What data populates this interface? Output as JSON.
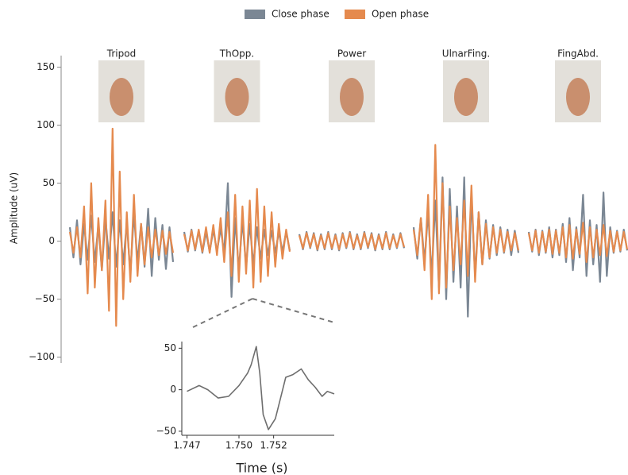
{
  "chart_data": [
    {
      "type": "line",
      "ylabel": "Amplitude (uV)",
      "categories": [
        "Tripod",
        "ThOpp.",
        "Power",
        "UlnarFing.",
        "FingAbd."
      ],
      "legend": "top",
      "ylim": [
        -105,
        160
      ],
      "yticks": [
        {
          "value": -100,
          "label": "−100"
        },
        {
          "value": -50,
          "label": "−50"
        },
        0,
        50,
        100,
        150
      ],
      "series": [
        {
          "name": "Close phase",
          "color": "#7b8794",
          "values": [
            [
              12,
              -14,
              18,
              -20,
              15,
              -16,
              22,
              -18,
              14,
              -25,
              20,
              -15,
              25,
              -22,
              18,
              -20,
              16,
              -28,
              24,
              -18,
              15,
              -22,
              28,
              -30,
              20,
              -16,
              14,
              -24,
              12,
              -18
            ],
            [
              8,
              -9,
              10,
              -8,
              9,
              -10,
              8,
              -9,
              10,
              -9,
              11,
              -10,
              50,
              -48,
              20,
              -25,
              18,
              -22,
              15,
              -20,
              12,
              -15,
              10,
              -12,
              9,
              -10,
              8,
              -9,
              8,
              -8
            ],
            [
              6,
              -7,
              8,
              -6,
              7,
              -8,
              6,
              -7,
              8,
              -7,
              6,
              -8,
              7,
              -6,
              8,
              -7,
              6,
              -7,
              8,
              -6,
              7,
              -8,
              6,
              -7,
              8,
              -7,
              6,
              -6,
              7,
              -6
            ],
            [
              12,
              -15,
              20,
              -18,
              25,
              -30,
              35,
              -40,
              55,
              -50,
              45,
              -35,
              30,
              -40,
              55,
              -65,
              40,
              -30,
              25,
              -20,
              18,
              -15,
              14,
              -12,
              12,
              -10,
              10,
              -12,
              9,
              -10
            ],
            [
              8,
              -9,
              10,
              -12,
              9,
              -10,
              12,
              -14,
              10,
              -12,
              15,
              -18,
              20,
              -25,
              12,
              -14,
              40,
              -30,
              18,
              -20,
              14,
              -35,
              42,
              -30,
              12,
              -10,
              9,
              -9,
              10,
              -8
            ]
          ]
        },
        {
          "name": "Open phase",
          "color": "#e58a4e",
          "values": [
            [
              8,
              -10,
              12,
              -14,
              30,
              -45,
              50,
              -40,
              20,
              -25,
              35,
              -60,
              97,
              -73,
              60,
              -50,
              25,
              -35,
              40,
              -30,
              15,
              -20,
              12,
              -14,
              10,
              -12,
              9,
              -11,
              8,
              -10
            ],
            [
              6,
              -8,
              9,
              -7,
              10,
              -9,
              12,
              -10,
              14,
              -12,
              20,
              -18,
              25,
              -30,
              40,
              -35,
              30,
              -28,
              35,
              -40,
              45,
              -35,
              30,
              -30,
              25,
              -22,
              15,
              -15,
              10,
              -9
            ],
            [
              5,
              -6,
              7,
              -5,
              6,
              -7,
              5,
              -6,
              7,
              -6,
              5,
              -7,
              6,
              -5,
              7,
              -6,
              5,
              -6,
              7,
              -5,
              6,
              -7,
              5,
              -6,
              7,
              -6,
              5,
              -5,
              6,
              -5
            ],
            [
              10,
              -12,
              20,
              -25,
              40,
              -50,
              83,
              -45,
              50,
              -40,
              30,
              -25,
              20,
              -20,
              35,
              -30,
              48,
              -35,
              25,
              -20,
              15,
              -14,
              12,
              -10,
              10,
              -9,
              8,
              -8,
              7,
              -8
            ],
            [
              7,
              -8,
              9,
              -10,
              8,
              -9,
              10,
              -11,
              9,
              -10,
              12,
              -14,
              14,
              -15,
              10,
              -11,
              16,
              -18,
              12,
              -14,
              10,
              -12,
              14,
              -13,
              9,
              -9,
              8,
              -8,
              8,
              -7
            ]
          ]
        }
      ]
    },
    {
      "type": "line",
      "xlabel": "Time (s)",
      "xlim": [
        1.7467,
        1.7555
      ],
      "xticks": [
        1.747,
        {
          "value": 1.75,
          "label": "1.750"
        },
        1.752
      ],
      "ylim": [
        -52,
        58
      ],
      "yticks": [
        {
          "value": -50,
          "label": "−50"
        },
        0,
        50
      ],
      "x": [
        1.747,
        1.7477,
        1.7482,
        1.7488,
        1.7494,
        1.75,
        1.7505,
        1.7507,
        1.751,
        1.7512,
        1.7514,
        1.7517,
        1.7521,
        1.7524,
        1.7527,
        1.7531,
        1.7536,
        1.754,
        1.7544,
        1.7548,
        1.7551,
        1.7555
      ],
      "series": [
        {
          "color": "#6e6e6e",
          "values": [
            -2,
            5,
            0,
            -10,
            -8,
            5,
            20,
            30,
            52,
            20,
            -30,
            -48,
            -35,
            -10,
            15,
            18,
            25,
            12,
            3,
            -8,
            -2,
            -5
          ]
        }
      ]
    }
  ]
}
